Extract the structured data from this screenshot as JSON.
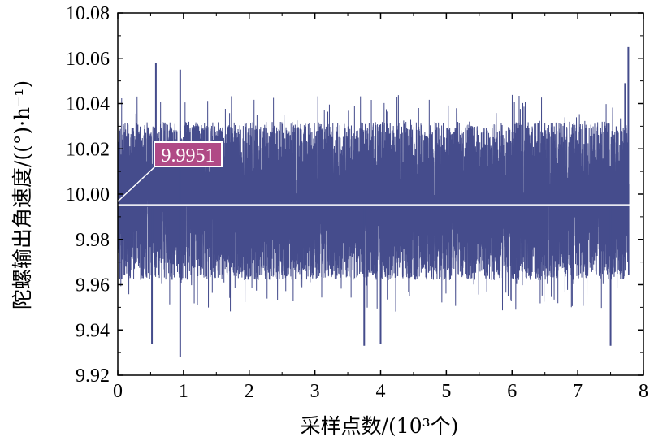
{
  "chart_data": {
    "type": "line",
    "xlabel": "采样点数/(10³个)",
    "ylabel": "陀螺输出角速度/((°)·h⁻¹)",
    "xlim": [
      0,
      8
    ],
    "ylim": [
      9.92,
      10.08
    ],
    "x_ticks": [
      "0",
      "1",
      "2",
      "3",
      "4",
      "5",
      "6",
      "7",
      "8"
    ],
    "y_ticks": [
      "9.92",
      "9.94",
      "9.96",
      "9.98",
      "10.00",
      "10.02",
      "10.04",
      "10.06",
      "10.08"
    ],
    "series": [
      {
        "color": "#454c8c",
        "x_range": [
          0,
          7.78
        ],
        "num_points": 7780,
        "mean": 9.9951,
        "band_upper_typical": 10.032,
        "band_lower_typical": 9.962,
        "peaks": [
          {
            "x": 0.58,
            "y": 10.058
          },
          {
            "x": 0.95,
            "y": 10.055
          },
          {
            "x": 7.77,
            "y": 10.065
          },
          {
            "x": 7.72,
            "y": 10.049
          }
        ],
        "troughs": [
          {
            "x": 0.95,
            "y": 9.928
          },
          {
            "x": 0.52,
            "y": 9.934
          },
          {
            "x": 3.75,
            "y": 9.933
          },
          {
            "x": 7.5,
            "y": 9.933
          },
          {
            "x": 4.0,
            "y": 9.934
          }
        ]
      }
    ],
    "mean_line": {
      "y": 9.9951,
      "color": "#ffffff"
    },
    "annotation": {
      "text": "9.9951",
      "bg_color": "#b04a86",
      "border_color": "#ffffff"
    },
    "grid": false,
    "legend": "none"
  }
}
